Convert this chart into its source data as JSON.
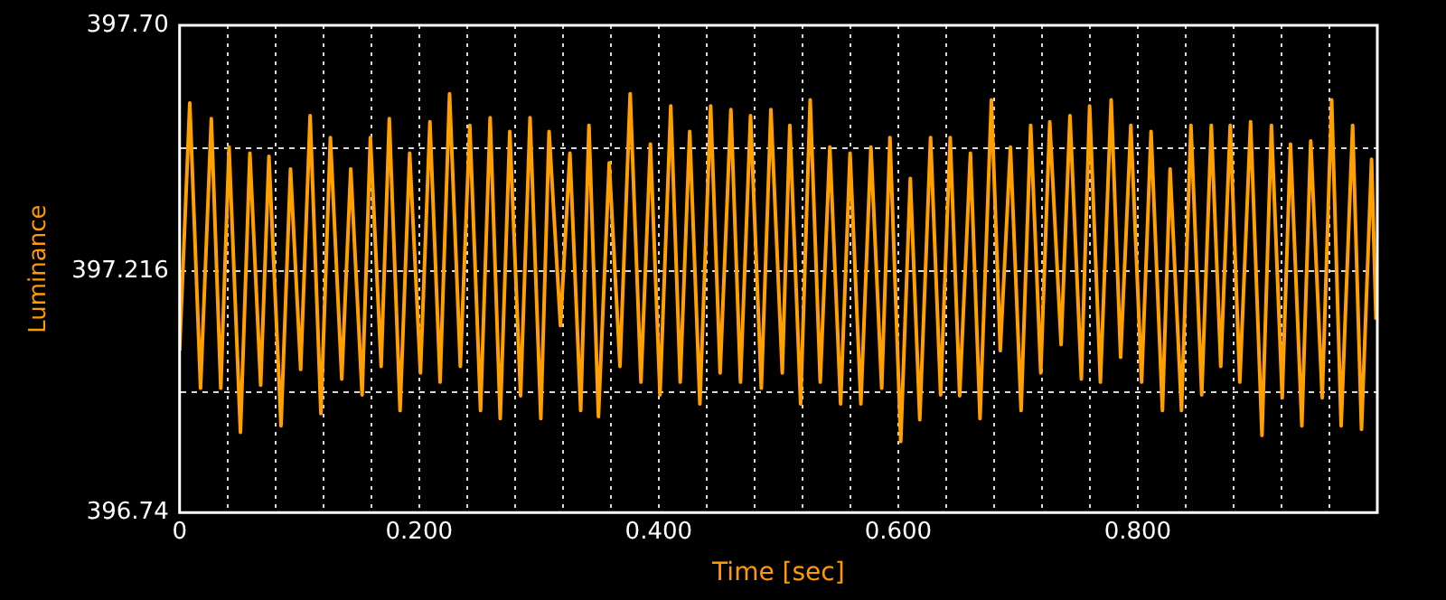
{
  "chart_data": {
    "type": "line",
    "xlabel": "Time [sec]",
    "ylabel": "Luminance",
    "x": [
      0,
      0.0085,
      0.0175,
      0.0265,
      0.0344,
      0.0413,
      0.0508,
      0.0587,
      0.0677,
      0.0746,
      0.0847,
      0.0926,
      0.1011,
      0.109,
      0.118,
      0.1259,
      0.1354,
      0.1429,
      0.1524,
      0.1593,
      0.1683,
      0.1751,
      0.1841,
      0.1921,
      0.2011,
      0.209,
      0.2175,
      0.2254,
      0.2344,
      0.2423,
      0.2513,
      0.2593,
      0.2677,
      0.2757,
      0.2847,
      0.2926,
      0.3016,
      0.3085,
      0.318,
      0.3259,
      0.3349,
      0.3418,
      0.3497,
      0.3587,
      0.3677,
      0.3762,
      0.3852,
      0.3931,
      0.4011,
      0.4101,
      0.418,
      0.4259,
      0.4344,
      0.4434,
      0.4513,
      0.4603,
      0.4683,
      0.4767,
      0.4857,
      0.4937,
      0.5032,
      0.5095,
      0.5185,
      0.5265,
      0.5349,
      0.5429,
      0.5519,
      0.5598,
      0.5688,
      0.5772,
      0.5862,
      0.5931,
      0.6021,
      0.6101,
      0.618,
      0.627,
      0.6354,
      0.6434,
      0.6513,
      0.6603,
      0.6683,
      0.6778,
      0.6852,
      0.6937,
      0.7026,
      0.7106,
      0.719,
      0.7265,
      0.736,
      0.7434,
      0.7529,
      0.7598,
      0.7688,
      0.7778,
      0.7857,
      0.7942,
      0.8032,
      0.8111,
      0.8206,
      0.827,
      0.8365,
      0.8444,
      0.8534,
      0.8614,
      0.8693,
      0.8772,
      0.8852,
      0.8942,
      0.9037,
      0.9116,
      0.9206,
      0.9275,
      0.937,
      0.9444,
      0.954,
      0.9619,
      0.9698,
      0.9794,
      0.9868,
      0.9952,
      0.9989
    ],
    "series": [
      {
        "color": "#ffa000",
        "values": [
          397.059,
          397.547,
          396.985,
          397.516,
          396.985,
          397.46,
          396.898,
          397.448,
          396.991,
          397.442,
          396.911,
          397.417,
          397.022,
          397.522,
          396.935,
          397.479,
          397.003,
          397.417,
          396.972,
          397.479,
          397.028,
          397.516,
          396.941,
          397.448,
          397.015,
          397.51,
          396.997,
          397.565,
          397.028,
          397.503,
          396.941,
          397.518,
          396.925,
          397.491,
          396.97,
          397.518,
          396.925,
          397.491,
          397.108,
          397.448,
          396.941,
          397.503,
          396.929,
          397.429,
          397.028,
          397.565,
          396.997,
          397.466,
          396.972,
          397.541,
          396.997,
          397.491,
          396.954,
          397.541,
          397.015,
          397.534,
          396.997,
          397.522,
          396.985,
          397.534,
          397.015,
          397.503,
          396.954,
          397.553,
          396.997,
          397.46,
          396.954,
          397.448,
          396.954,
          397.46,
          396.985,
          397.479,
          396.88,
          397.398,
          396.923,
          397.479,
          396.972,
          397.479,
          396.97,
          397.448,
          396.925,
          397.553,
          397.059,
          397.46,
          396.941,
          397.503,
          397.015,
          397.51,
          397.071,
          397.522,
          397.003,
          397.541,
          396.997,
          397.553,
          397.046,
          397.503,
          396.997,
          397.491,
          396.941,
          397.417,
          396.941,
          397.503,
          396.972,
          397.503,
          397.028,
          397.503,
          396.997,
          397.51,
          396.892,
          397.503,
          396.966,
          397.466,
          396.911,
          397.472,
          396.966,
          397.553,
          396.911,
          397.503,
          396.904,
          397.436,
          397.12
        ]
      }
    ],
    "xlim": [
      0,
      1.0
    ],
    "xticks": [
      0,
      {
        "value": 0.04,
        "label": null
      },
      {
        "value": 0.08,
        "label": null
      },
      {
        "value": 0.12,
        "label": null
      },
      {
        "value": 0.16,
        "label": null
      },
      {
        "value": 0.2,
        "label": "0.200"
      },
      {
        "value": 0.24,
        "label": null
      },
      {
        "value": 0.28,
        "label": null
      },
      {
        "value": 0.32,
        "label": null
      },
      {
        "value": 0.36,
        "label": null
      },
      {
        "value": 0.4,
        "label": "0.400"
      },
      {
        "value": 0.44,
        "label": null
      },
      {
        "value": 0.48,
        "label": null
      },
      {
        "value": 0.52,
        "label": null
      },
      {
        "value": 0.56,
        "label": null
      },
      {
        "value": 0.6,
        "label": "0.600"
      },
      {
        "value": 0.64,
        "label": null
      },
      {
        "value": 0.68,
        "label": null
      },
      {
        "value": 0.72,
        "label": null
      },
      {
        "value": 0.76,
        "label": null
      },
      {
        "value": 0.8,
        "label": "0.800"
      },
      {
        "value": 0.84,
        "label": null
      },
      {
        "value": 0.88,
        "label": null
      },
      {
        "value": 0.92,
        "label": null
      },
      {
        "value": 0.96,
        "label": null
      }
    ],
    "ylim": [
      396.74,
      397.7
    ],
    "yticks": [
      {
        "value": 396.74,
        "label": "396.74"
      },
      {
        "value": 396.978,
        "label": null
      },
      397.216,
      {
        "value": 397.458,
        "label": null
      },
      {
        "value": 397.7,
        "label": "397.70"
      }
    ],
    "grid": true,
    "legend": false,
    "marker": "none",
    "line_style": "solid"
  }
}
